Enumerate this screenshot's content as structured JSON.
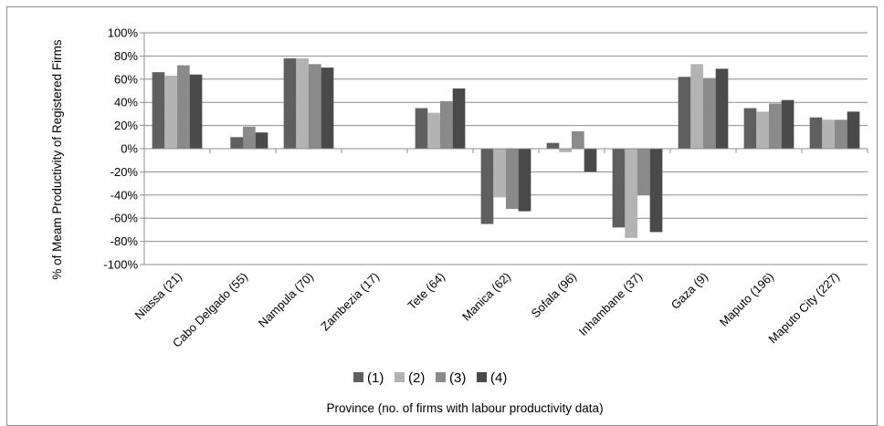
{
  "chart_data": {
    "type": "bar",
    "title": "",
    "xlabel": "Province (no. of firms with labour productivity data)",
    "ylabel": "% of Meam Productivity of Registered Firms",
    "ylim": [
      -100,
      100
    ],
    "yticks": [
      100,
      80,
      60,
      40,
      20,
      0,
      -20,
      -40,
      -60,
      -80,
      -100
    ],
    "ytick_labels": [
      "100%",
      "80%",
      "60%",
      "40%",
      "20%",
      "0%",
      "-20%",
      "-40%",
      "-60%",
      "-80%",
      "-100%"
    ],
    "grid": "horizontal",
    "legend_position": "bottom",
    "categories": [
      "Niassa (21)",
      "Cabo Delgado (55)",
      "Nampula (70)",
      "Zambezia (17)",
      "Tete (64)",
      "Manica (62)",
      "Sofala (96)",
      "Inhambane (37)",
      "Gaza (9)",
      "Maputo (196)",
      "Maputo City (227)"
    ],
    "series": [
      {
        "name": "(1)",
        "color": "#5f5f5f",
        "values": [
          66,
          0,
          78,
          0,
          35,
          -65,
          5,
          -68,
          62,
          35,
          27
        ]
      },
      {
        "name": "(2)",
        "color": "#b3b3b3",
        "values": [
          63,
          0,
          78,
          0,
          31,
          -42,
          -3,
          -77,
          73,
          32,
          25
        ]
      },
      {
        "name": "(3)",
        "color": "#8a8a8a",
        "values": [
          72,
          19,
          73,
          0,
          41,
          -52,
          15,
          -40,
          61,
          39,
          25
        ]
      },
      {
        "name": "(4)",
        "color": "#4a4a4a",
        "values": [
          64,
          14,
          70,
          0,
          52,
          -54,
          -20,
          -72,
          69,
          42,
          32
        ]
      }
    ],
    "extra_bars": [
      {
        "category_index": 1,
        "value": 10,
        "color": "#5f5f5f"
      }
    ]
  }
}
